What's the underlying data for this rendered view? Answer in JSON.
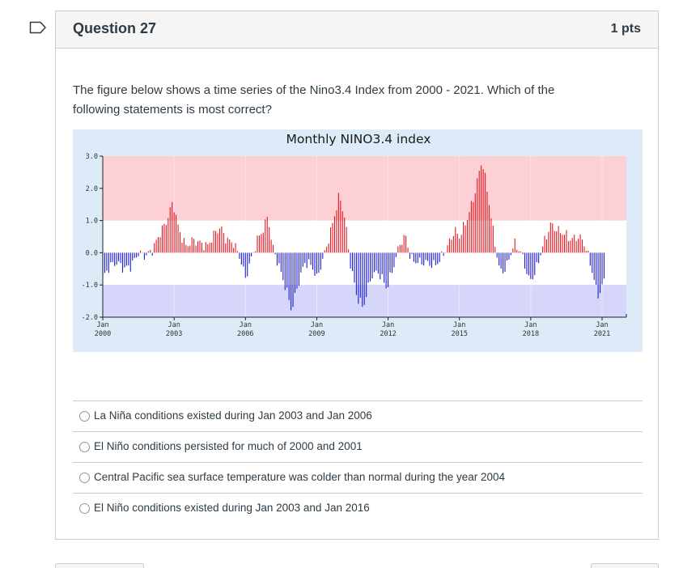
{
  "question": {
    "title": "Question 27",
    "points": "1 pts",
    "text": "The figure below shows a time series of the Nino3.4 Index from 2000 - 2021. Which of the following statements is most correct?"
  },
  "chart_data": {
    "type": "bar",
    "title": "Monthly NINO3.4 index",
    "ylim": [
      -2.0,
      3.0
    ],
    "yticks": [
      "3.0",
      "2.0",
      "1.0",
      "0.0",
      "-1.0",
      "-2.0"
    ],
    "xticks": [
      {
        "label1": "Jan",
        "label2": "2000"
      },
      {
        "label1": "Jan",
        "label2": "2003"
      },
      {
        "label1": "Jan",
        "label2": "2006"
      },
      {
        "label1": "Jan",
        "label2": "2009"
      },
      {
        "label1": "Jan",
        "label2": "2012"
      },
      {
        "label1": "Jan",
        "label2": "2015"
      },
      {
        "label1": "Jan",
        "label2": "2018"
      },
      {
        "label1": "Jan",
        "label2": "2021"
      }
    ],
    "colors": {
      "positive": "#e8141e",
      "negative": "#1a1ad6",
      "warm_band": "#fcd0d4",
      "cold_band": "#d6d6fa",
      "neutral_band": "#ffffff"
    },
    "anchors": [
      [
        2000.0,
        -0.8
      ],
      [
        2000.3,
        -0.4
      ],
      [
        2000.6,
        -0.3
      ],
      [
        2000.9,
        -0.5
      ],
      [
        2001.2,
        -0.4
      ],
      [
        2001.5,
        0.0
      ],
      [
        2001.8,
        -0.1
      ],
      [
        2002.1,
        0.1
      ],
      [
        2002.4,
        0.6
      ],
      [
        2002.7,
        1.0
      ],
      [
        2002.95,
        1.6
      ],
      [
        2003.2,
        0.7
      ],
      [
        2003.5,
        0.2
      ],
      [
        2003.8,
        0.4
      ],
      [
        2004.1,
        0.3
      ],
      [
        2004.4,
        0.2
      ],
      [
        2004.7,
        0.6
      ],
      [
        2004.95,
        0.8
      ],
      [
        2005.2,
        0.4
      ],
      [
        2005.5,
        0.3
      ],
      [
        2005.8,
        -0.2
      ],
      [
        2006.0,
        -0.8
      ],
      [
        2006.2,
        -0.3
      ],
      [
        2006.5,
        0.4
      ],
      [
        2006.8,
        0.8
      ],
      [
        2006.95,
        1.2
      ],
      [
        2007.1,
        0.3
      ],
      [
        2007.4,
        -0.4
      ],
      [
        2007.7,
        -1.1
      ],
      [
        2007.95,
        -1.8
      ],
      [
        2008.2,
        -1.0
      ],
      [
        2008.5,
        -0.3
      ],
      [
        2008.8,
        -0.4
      ],
      [
        2009.0,
        -0.8
      ],
      [
        2009.3,
        -0.1
      ],
      [
        2009.6,
        0.7
      ],
      [
        2009.95,
        1.8
      ],
      [
        2010.2,
        1.0
      ],
      [
        2010.4,
        -0.3
      ],
      [
        2010.7,
        -1.4
      ],
      [
        2010.95,
        -1.7
      ],
      [
        2011.3,
        -0.7
      ],
      [
        2011.6,
        -0.6
      ],
      [
        2011.95,
        -1.1
      ],
      [
        2012.2,
        -0.5
      ],
      [
        2012.5,
        0.3
      ],
      [
        2012.75,
        0.5
      ],
      [
        2012.95,
        -0.2
      ],
      [
        2013.3,
        -0.3
      ],
      [
        2013.6,
        -0.3
      ],
      [
        2013.95,
        -0.4
      ],
      [
        2014.2,
        -0.2
      ],
      [
        2014.5,
        0.2
      ],
      [
        2014.8,
        0.7
      ],
      [
        2015.0,
        0.5
      ],
      [
        2015.3,
        1.0
      ],
      [
        2015.6,
        1.7
      ],
      [
        2015.95,
        2.9
      ],
      [
        2016.2,
        1.8
      ],
      [
        2016.45,
        0.5
      ],
      [
        2016.7,
        -0.6
      ],
      [
        2016.95,
        -0.5
      ],
      [
        2017.3,
        0.3
      ],
      [
        2017.6,
        0.0
      ],
      [
        2017.95,
        -0.9
      ],
      [
        2018.2,
        -0.6
      ],
      [
        2018.5,
        0.2
      ],
      [
        2018.85,
        0.9
      ],
      [
        2019.1,
        0.7
      ],
      [
        2019.4,
        0.6
      ],
      [
        2019.7,
        0.4
      ],
      [
        2019.95,
        0.5
      ],
      [
        2020.2,
        0.4
      ],
      [
        2020.5,
        -0.3
      ],
      [
        2020.8,
        -1.3
      ],
      [
        2020.95,
        -1.2
      ],
      [
        2021.1,
        -0.8
      ]
    ]
  },
  "answers": [
    {
      "label": "La Niña conditions existed during Jan 2003 and Jan 2006"
    },
    {
      "label": "El Niño conditions persisted for much of 2000 and 2001"
    },
    {
      "label": "Central Pacific sea surface temperature was colder than normal during the year 2004"
    },
    {
      "label": "El Niño conditions existed during Jan 2003 and Jan 2016"
    }
  ]
}
